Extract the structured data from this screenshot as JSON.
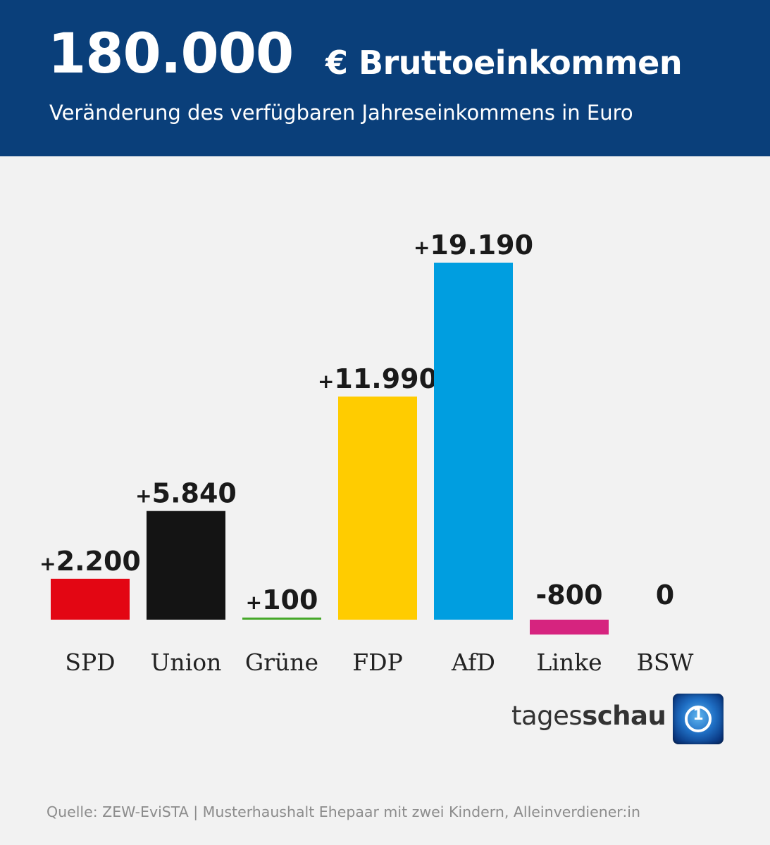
{
  "header": {
    "title_number": "180.000",
    "title_rest": "€ Bruttoeinkommen",
    "subtitle": "Veränderung des verfügbaren Jahreseinkommens in Euro"
  },
  "chart_data": {
    "type": "bar",
    "title": "180.000 € Bruttoeinkommen",
    "subtitle": "Veränderung des verfügbaren Jahreseinkommens in Euro",
    "categories": [
      "SPD",
      "Union",
      "Grüne",
      "FDP",
      "AfD",
      "Linke",
      "BSW"
    ],
    "values": [
      2200,
      5840,
      100,
      11990,
      19190,
      -800,
      0
    ],
    "value_labels": [
      {
        "sign": "+",
        "number": "2.200"
      },
      {
        "sign": "+",
        "number": "5.840"
      },
      {
        "sign": "+",
        "number": "100"
      },
      {
        "sign": "+",
        "number": "11.990"
      },
      {
        "sign": "+",
        "number": "19.190"
      },
      {
        "sign": "",
        "number": "-800"
      },
      {
        "sign": "",
        "number": "0"
      }
    ],
    "colors": [
      "#e30613",
      "#141414",
      "#46a829",
      "#ffcc00",
      "#009ee0",
      "#d6247f",
      "#7b1e5a"
    ],
    "xlabel": "",
    "ylabel": "",
    "grid": false,
    "legend": "none"
  },
  "brand": {
    "light": "tages",
    "bold": "schau",
    "logo_text": "1"
  },
  "source": "Quelle: ZEW-EviSTA | Musterhaushalt Ehepaar mit zwei Kindern, Alleinverdiener:in"
}
